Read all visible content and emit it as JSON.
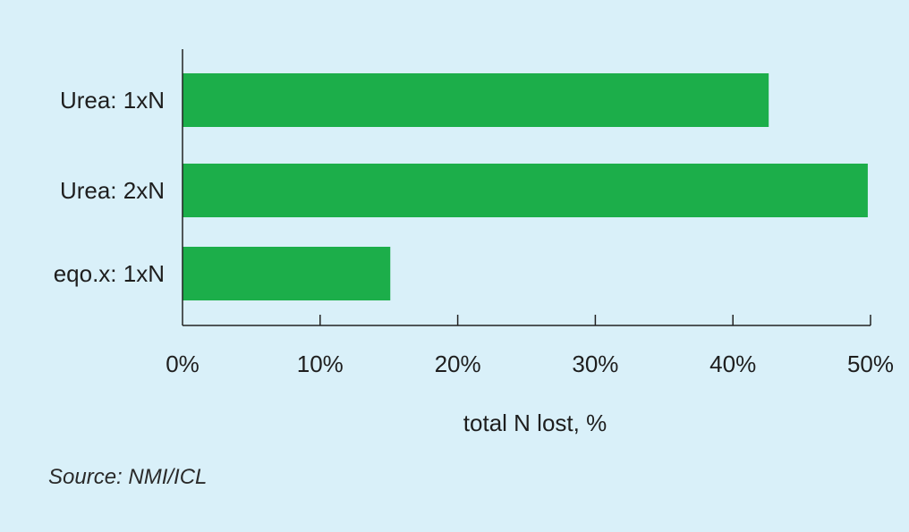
{
  "chart_data": {
    "type": "bar",
    "orientation": "horizontal",
    "categories": [
      "Urea: 1xN",
      "Urea: 2xN",
      "eqo.x: 1xN"
    ],
    "values": [
      42.6,
      49.8,
      15.1
    ],
    "xlabel": "total N lost, %",
    "xlim": [
      0,
      50
    ],
    "xticks": [
      "0%",
      "10%",
      "20%",
      "30%",
      "40%",
      "50%"
    ],
    "grid": false,
    "bar_color": "#1cae4a",
    "background_color": "#d9f0f9"
  },
  "source": "Source: NMI/ICL"
}
